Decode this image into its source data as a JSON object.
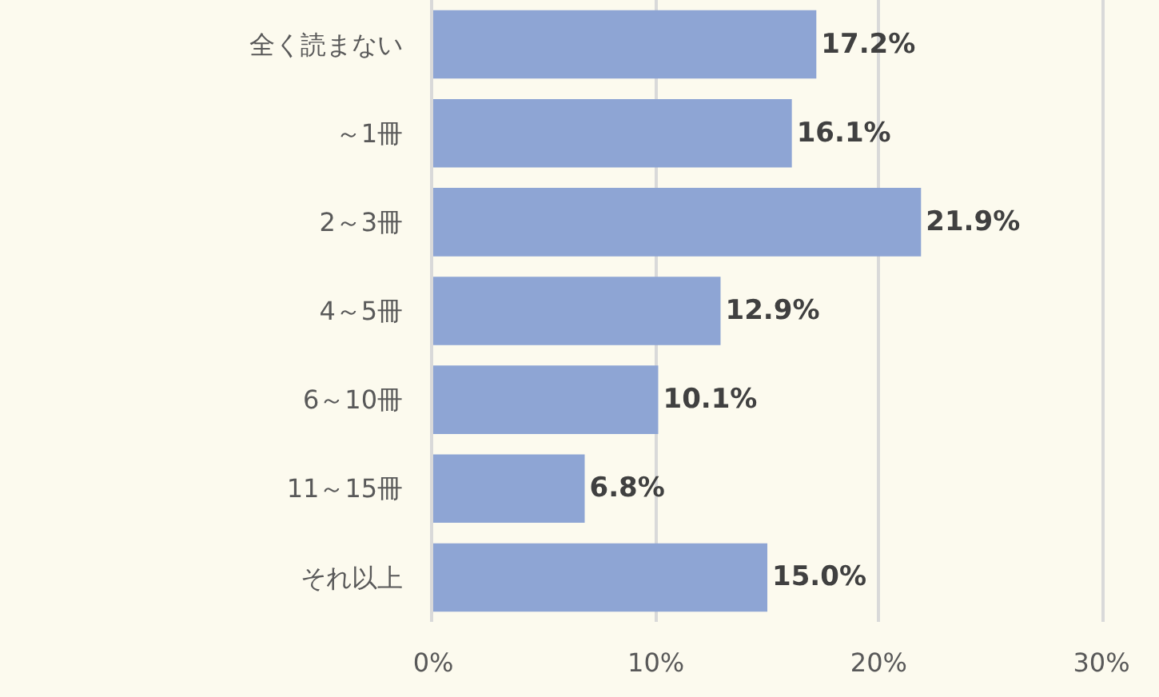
{
  "chart_data": {
    "type": "bar",
    "orientation": "horizontal",
    "categories": [
      "全く読まない",
      "～1冊",
      "2～3冊",
      "4～5冊",
      "6～10冊",
      "11～15冊",
      "それ以上"
    ],
    "values": [
      17.2,
      16.1,
      21.9,
      12.9,
      10.1,
      6.8,
      15.0
    ],
    "color": "#8ea5d4",
    "value_labels": [
      "17.2%",
      "16.1%",
      "21.9%",
      "12.9%",
      "10.1%",
      "6.8%",
      "15.0%"
    ],
    "xlim": [
      0,
      30
    ],
    "xticks": [
      {
        "value": 0,
        "label": "0%"
      },
      {
        "value": 10,
        "label": "10%"
      },
      {
        "value": 20,
        "label": "20%"
      },
      {
        "value": 30,
        "label": "30%"
      }
    ],
    "grid": "x"
  }
}
